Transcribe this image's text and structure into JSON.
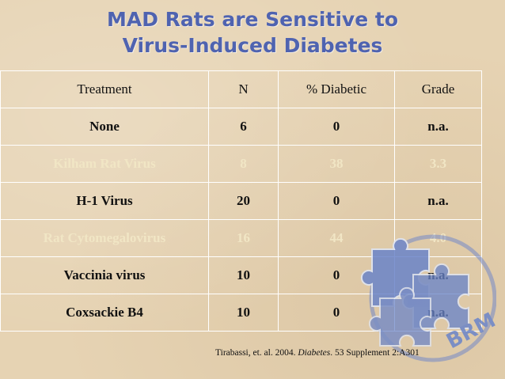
{
  "slide": {
    "title_line1": "MAD Rats are Sensitive to",
    "title_line2": "Virus-Induced Diabetes"
  },
  "table": {
    "headers": [
      "Treatment",
      "N",
      "% Diabetic",
      "Grade"
    ],
    "rows": [
      [
        "None",
        "6",
        "0",
        "n.a."
      ],
      [
        "Kilham Rat Virus",
        "8",
        "38",
        "3.3"
      ],
      [
        "H-1 Virus",
        "20",
        "0",
        "n.a."
      ],
      [
        "Rat Cytomegalovirus",
        "16",
        "44",
        "4.0"
      ],
      [
        "Vaccinia virus",
        "10",
        "0",
        "n.a."
      ],
      [
        "Coxsackie B4",
        "10",
        "0",
        "n.a."
      ]
    ]
  },
  "citation": {
    "pre": "Tirabassi, et. al. 2004.",
    "journal": "Diabetes",
    "post": ". 53 Supplement 2:A301"
  },
  "logo": {
    "text": "BRM",
    "icon": "puzzle-piece-icon",
    "color": "#6a84c9"
  }
}
